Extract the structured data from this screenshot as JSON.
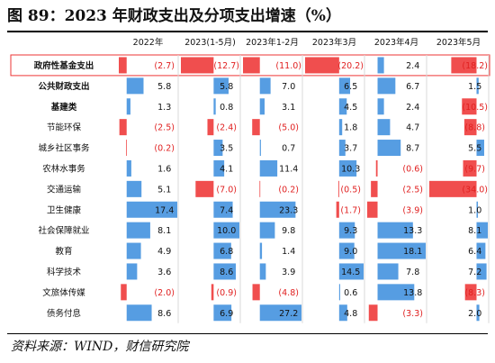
{
  "title": "图 89：2023 年财政支出及分项支出增速（%）",
  "source": "资料来源：WIND，财信研究院",
  "colors": {
    "positive": "#3f8fde",
    "negative": "#ee3535",
    "negative_text": "#e02020",
    "text": "#111111"
  },
  "chart_data": {
    "type": "table",
    "columns": [
      "2022年",
      "2023(1-5月)",
      "2023年1-2月",
      "2023年3月",
      "2023年4月",
      "2023年5月"
    ],
    "rows": [
      {
        "label": "政府性基金支出",
        "values": [
          -2.7,
          -12.7,
          -11.0,
          -20.2,
          2.4,
          -18.2
        ],
        "texts": [
          "(2.7)",
          "(12.7)",
          "(11.0)",
          "(20.2)",
          "2.4",
          "(18.2)"
        ]
      },
      {
        "label": "公共财政支出",
        "values": [
          5.8,
          5.8,
          7.0,
          6.5,
          6.7,
          1.5
        ],
        "texts": [
          "5.8",
          "5.8",
          "7.0",
          "6.5",
          "6.7",
          "1.5"
        ]
      },
      {
        "label": "基建类",
        "values": [
          1.3,
          0.8,
          3.1,
          4.5,
          2.4,
          -10.5
        ],
        "texts": [
          "1.3",
          "0.8",
          "3.1",
          "4.5",
          "2.4",
          "(10.5)"
        ]
      },
      {
        "label": "节能环保",
        "values": [
          -2.5,
          -2.4,
          -5.0,
          1.8,
          4.7,
          -8.8
        ],
        "texts": [
          "(2.5)",
          "(2.4)",
          "(5.0)",
          "1.8",
          "4.7",
          "(8.8)"
        ]
      },
      {
        "label": "城乡社区事务",
        "values": [
          -0.2,
          3.5,
          0.7,
          3.7,
          8.7,
          5.5
        ],
        "texts": [
          "(0.2)",
          "3.5",
          "0.7",
          "3.7",
          "8.7",
          "5.5"
        ]
      },
      {
        "label": "农林水事务",
        "values": [
          1.6,
          4.1,
          11.4,
          10.3,
          -0.6,
          -9.7
        ],
        "texts": [
          "1.6",
          "4.1",
          "11.4",
          "10.3",
          "(0.6)",
          "(9.7)"
        ]
      },
      {
        "label": "交通运输",
        "values": [
          5.1,
          -7.0,
          -0.2,
          -0.5,
          -2.5,
          -34.0
        ],
        "texts": [
          "5.1",
          "(7.0)",
          "(0.2)",
          "(0.5)",
          "(2.5)",
          "(34.0)"
        ]
      },
      {
        "label": "卫生健康",
        "values": [
          17.4,
          7.4,
          23.3,
          -1.7,
          -3.9,
          1.0
        ],
        "texts": [
          "17.4",
          "7.4",
          "23.3",
          "(1.7)",
          "(3.9)",
          "1.0"
        ]
      },
      {
        "label": "社会保障就业",
        "values": [
          8.1,
          10.0,
          9.8,
          9.3,
          13.3,
          8.1
        ],
        "texts": [
          "8.1",
          "10.0",
          "9.8",
          "9.3",
          "13.3",
          "8.1"
        ]
      },
      {
        "label": "教育",
        "values": [
          4.9,
          6.8,
          1.4,
          9.0,
          18.1,
          6.4
        ],
        "texts": [
          "4.9",
          "6.8",
          "1.4",
          "9.0",
          "18.1",
          "6.4"
        ]
      },
      {
        "label": "科学技术",
        "values": [
          3.6,
          8.6,
          3.9,
          14.5,
          7.8,
          7.2
        ],
        "texts": [
          "3.6",
          "8.6",
          "3.9",
          "14.5",
          "7.8",
          "7.2"
        ]
      },
      {
        "label": "文旅体传媒",
        "values": [
          -2.0,
          -0.9,
          -4.8,
          0.6,
          13.8,
          -8.3
        ],
        "texts": [
          "(2.0)",
          "(0.9)",
          "(4.8)",
          "0.6",
          "13.8",
          "(8.3)"
        ]
      },
      {
        "label": "债务付息",
        "values": [
          8.6,
          6.9,
          27.2,
          4.8,
          -3.3,
          2.0
        ],
        "texts": [
          "8.6",
          "6.9",
          "27.2",
          "4.8",
          "(3.3)",
          "2.0"
        ]
      }
    ],
    "bold_rows": [
      "政府性基金支出",
      "公共财政支出",
      "基建类"
    ],
    "axis_ranges": {
      "2022年": [
        -2.7,
        17.4
      ],
      "2023(1-5月)": [
        -12.7,
        10.0
      ],
      "2023年1-2月": [
        -11.0,
        27.2
      ],
      "2023年3月": [
        -20.2,
        14.5
      ],
      "2023年4月": [
        -3.9,
        18.1
      ],
      "2023年5月": [
        -34.0,
        8.1
      ]
    }
  }
}
